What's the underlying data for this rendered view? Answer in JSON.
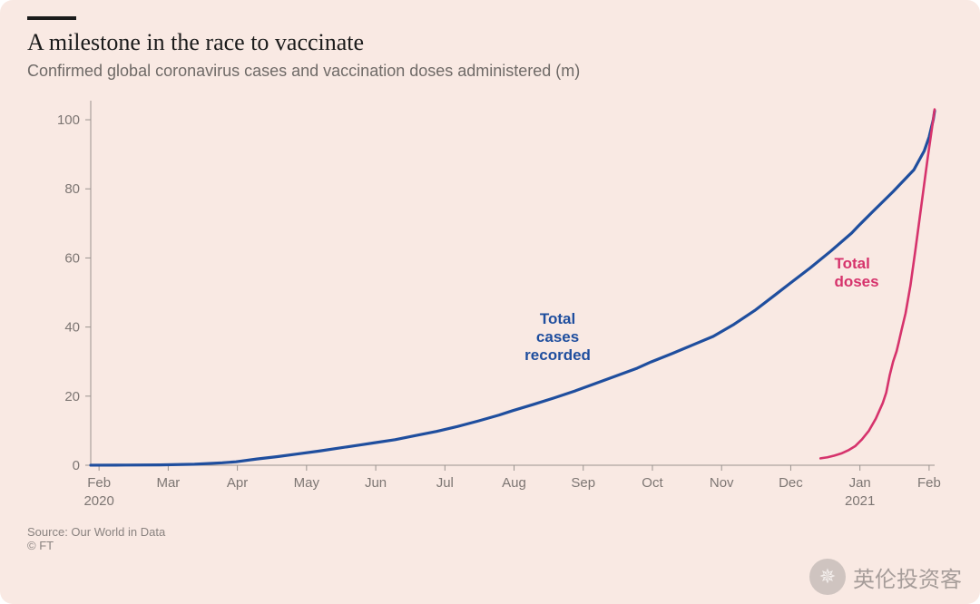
{
  "background_color": "#f9e9e3",
  "title": {
    "text": "A milestone in the race to vaccinate",
    "color": "#1b1b1b",
    "fontsize": 26,
    "kicker_color": "#1b1b1b"
  },
  "subtitle": {
    "text": "Confirmed global coronavirus cases and vaccination doses administered (m)",
    "color": "#6f6a67",
    "fontsize": 18
  },
  "source": {
    "text": "Source: Our World in Data\n© FT",
    "color": "#8a8380",
    "fontsize": 13
  },
  "watermark": {
    "text": "英伦投资客"
  },
  "chart": {
    "type": "line",
    "plot_bg": "#f9e9e3",
    "axis_color": "#9a938f",
    "grid_color": "#d8cbc5",
    "tick_color": "#9a938f",
    "label_color": "#7d7673",
    "label_fontsize": 15,
    "sublabel_fontsize": 15,
    "y": {
      "min": 0,
      "max": 105,
      "ticks": [
        0,
        20,
        40,
        60,
        80,
        100
      ]
    },
    "x": {
      "min": 0,
      "max": 12.2,
      "ticks": [
        {
          "v": 0.12,
          "label": "Feb",
          "sub": "2020"
        },
        {
          "v": 1.12,
          "label": "Mar"
        },
        {
          "v": 2.12,
          "label": "Apr"
        },
        {
          "v": 3.12,
          "label": "May"
        },
        {
          "v": 4.12,
          "label": "Jun"
        },
        {
          "v": 5.12,
          "label": "Jul"
        },
        {
          "v": 6.12,
          "label": "Aug"
        },
        {
          "v": 7.12,
          "label": "Sep"
        },
        {
          "v": 8.12,
          "label": "Oct"
        },
        {
          "v": 9.12,
          "label": "Nov"
        },
        {
          "v": 10.12,
          "label": "Dec"
        },
        {
          "v": 11.12,
          "label": "Jan",
          "sub": "2021"
        },
        {
          "v": 12.12,
          "label": "Feb"
        }
      ]
    },
    "series": [
      {
        "name": "cases",
        "color": "#1f4e9e",
        "width": 3.2,
        "annotation": {
          "text": "Total\ncases\nrecorded",
          "x": 6.75,
          "y": 41,
          "align": "middle"
        },
        "points": [
          [
            0,
            0.01
          ],
          [
            0.5,
            0.05
          ],
          [
            1,
            0.1
          ],
          [
            1.5,
            0.3
          ],
          [
            1.9,
            0.7
          ],
          [
            2.1,
            1.0
          ],
          [
            2.4,
            1.8
          ],
          [
            2.7,
            2.5
          ],
          [
            3.0,
            3.3
          ],
          [
            3.3,
            4.1
          ],
          [
            3.6,
            5.0
          ],
          [
            3.9,
            5.9
          ],
          [
            4.1,
            6.5
          ],
          [
            4.4,
            7.4
          ],
          [
            4.7,
            8.6
          ],
          [
            5.0,
            9.8
          ],
          [
            5.3,
            11.2
          ],
          [
            5.6,
            12.8
          ],
          [
            5.9,
            14.5
          ],
          [
            6.1,
            15.8
          ],
          [
            6.4,
            17.6
          ],
          [
            6.7,
            19.5
          ],
          [
            7.0,
            21.5
          ],
          [
            7.3,
            23.7
          ],
          [
            7.6,
            25.9
          ],
          [
            7.9,
            28.1
          ],
          [
            8.1,
            29.9
          ],
          [
            8.4,
            32.3
          ],
          [
            8.7,
            34.8
          ],
          [
            9.0,
            37.3
          ],
          [
            9.3,
            40.8
          ],
          [
            9.6,
            44.8
          ],
          [
            9.9,
            49.4
          ],
          [
            10.1,
            52.5
          ],
          [
            10.4,
            57.1
          ],
          [
            10.7,
            62.0
          ],
          [
            11.0,
            67.2
          ],
          [
            11.1,
            69.3
          ],
          [
            11.15,
            70.3
          ],
          [
            11.3,
            73.3
          ],
          [
            11.6,
            79.2
          ],
          [
            11.9,
            85.5
          ],
          [
            12.05,
            91.0
          ],
          [
            12.12,
            95.0
          ],
          [
            12.18,
            100.0
          ],
          [
            12.2,
            102.6
          ]
        ]
      },
      {
        "name": "doses",
        "color": "#d6336c",
        "width": 2.6,
        "annotation": {
          "text": "Total\ndoses",
          "x": 10.75,
          "y": 57,
          "align": "start"
        },
        "points": [
          [
            10.55,
            2.0
          ],
          [
            10.65,
            2.3
          ],
          [
            10.75,
            2.8
          ],
          [
            10.85,
            3.4
          ],
          [
            10.95,
            4.3
          ],
          [
            11.05,
            5.5
          ],
          [
            11.15,
            7.5
          ],
          [
            11.25,
            10.0
          ],
          [
            11.35,
            13.5
          ],
          [
            11.45,
            18.0
          ],
          [
            11.5,
            21.0
          ],
          [
            11.55,
            26.0
          ],
          [
            11.6,
            30.0
          ],
          [
            11.65,
            33.0
          ],
          [
            11.68,
            35.5
          ],
          [
            11.72,
            39.0
          ],
          [
            11.78,
            44.0
          ],
          [
            11.85,
            52.0
          ],
          [
            11.92,
            62.0
          ],
          [
            11.98,
            71.0
          ],
          [
            12.04,
            80.0
          ],
          [
            12.1,
            89.0
          ],
          [
            12.15,
            96.0
          ],
          [
            12.2,
            103.0
          ]
        ]
      }
    ]
  }
}
